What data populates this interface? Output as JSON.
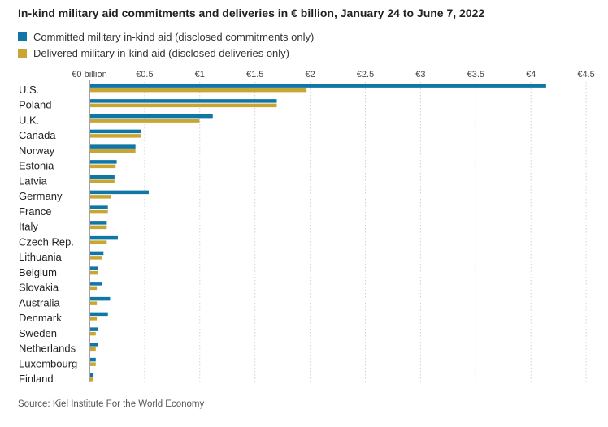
{
  "title": "In-kind military aid commitments and deliveries in € billion, January 24 to June 7, 2022",
  "source": "Source: Kiel Institute For the World Economy",
  "colors": {
    "committed": "#0f76a6",
    "delivered": "#c9a634",
    "grid": "#d0d0d0",
    "axis": "#444444"
  },
  "chart_data": {
    "type": "bar",
    "orientation": "horizontal",
    "title": "In-kind military aid commitments and deliveries in € billion, January 24 to June 7, 2022",
    "xlabel": "",
    "ylabel": "",
    "xlim": [
      0,
      4.5
    ],
    "x_ticks": [
      0,
      0.5,
      1,
      1.5,
      2,
      2.5,
      3,
      3.5,
      4,
      4.5
    ],
    "x_tick_labels": [
      "€0 billion",
      "€0.5",
      "€1",
      "€1.5",
      "€2",
      "€2.5",
      "€3",
      "€3.5",
      "€4",
      "€4.5"
    ],
    "grid": true,
    "legend_position": "top-left",
    "categories": [
      "U.S.",
      "Poland",
      "U.K.",
      "Canada",
      "Norway",
      "Estonia",
      "Latvia",
      "Germany",
      "France",
      "Italy",
      "Czech Rep.",
      "Lithuania",
      "Belgium",
      "Slovakia",
      "Australia",
      "Denmark",
      "Sweden",
      "Netherlands",
      "Luxembourg",
      "Finland"
    ],
    "series": [
      {
        "name": "Committed military in-kind aid (disclosed commitments only)",
        "values": [
          4.13,
          1.69,
          1.11,
          0.46,
          0.41,
          0.24,
          0.22,
          0.53,
          0.16,
          0.15,
          0.25,
          0.12,
          0.07,
          0.11,
          0.18,
          0.16,
          0.07,
          0.07,
          0.05,
          0.03
        ]
      },
      {
        "name": "Delivered military in-kind aid (disclosed deliveries only)",
        "values": [
          1.96,
          1.69,
          0.99,
          0.46,
          0.41,
          0.23,
          0.22,
          0.19,
          0.16,
          0.15,
          0.15,
          0.11,
          0.07,
          0.06,
          0.06,
          0.06,
          0.05,
          0.05,
          0.05,
          0.03
        ]
      }
    ]
  }
}
